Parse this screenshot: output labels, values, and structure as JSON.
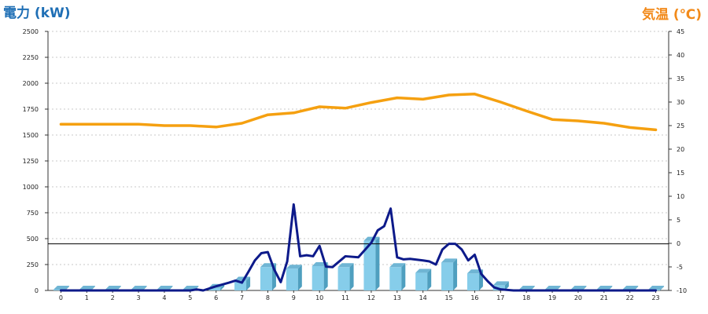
{
  "chart_data": {
    "type": "bar+line",
    "left_axis_title": "電力 (kW)",
    "right_axis_title": "気温 (℃)",
    "left_ylim": [
      0,
      2500
    ],
    "left_ticks": [
      0,
      250,
      500,
      750,
      1000,
      1250,
      1500,
      1750,
      2000,
      2250,
      2500
    ],
    "right_ylim": [
      -10,
      45
    ],
    "right_ticks": [
      -10,
      -5,
      0,
      5,
      10,
      15,
      20,
      25,
      30,
      35,
      40,
      45
    ],
    "categories": [
      "0",
      "1",
      "2",
      "3",
      "4",
      "5",
      "6",
      "7",
      "8",
      "9",
      "10",
      "11",
      "12",
      "13",
      "14",
      "15",
      "16",
      "17",
      "18",
      "19",
      "20",
      "21",
      "22",
      "23"
    ],
    "grid": true,
    "bars": {
      "axis": "left",
      "color": "#86cdea",
      "values": [
        8,
        8,
        8,
        8,
        8,
        8,
        25,
        95,
        225,
        210,
        235,
        225,
        480,
        225,
        170,
        270,
        165,
        50,
        8,
        8,
        8,
        8,
        8,
        8
      ]
    },
    "power_line": {
      "axis": "left",
      "color": "#0d1a8a",
      "x": [
        0,
        0.5,
        1,
        1.5,
        2,
        2.5,
        3,
        3.5,
        4,
        4.5,
        5,
        5.25,
        5.5,
        6,
        6.5,
        6.75,
        7,
        7.25,
        7.5,
        7.75,
        8,
        8.25,
        8.5,
        8.75,
        9,
        9.25,
        9.5,
        9.75,
        10,
        10.25,
        10.5,
        11,
        11.5,
        12,
        12.25,
        12.5,
        12.75,
        13,
        13.25,
        13.5,
        14,
        14.25,
        14.5,
        14.75,
        15,
        15.25,
        15.5,
        15.75,
        16,
        16.25,
        16.5,
        16.75,
        17,
        17.5,
        18,
        18.5,
        19,
        19.5,
        20,
        20.5,
        21,
        21.5,
        22,
        22.5,
        23
      ],
      "values": [
        0,
        0,
        0,
        0,
        0,
        0,
        0,
        0,
        0,
        0,
        0,
        10,
        0,
        40,
        75,
        95,
        75,
        180,
        290,
        360,
        370,
        200,
        80,
        280,
        830,
        330,
        340,
        330,
        430,
        230,
        225,
        330,
        320,
        460,
        580,
        620,
        790,
        320,
        300,
        305,
        290,
        280,
        250,
        395,
        450,
        450,
        395,
        290,
        345,
        160,
        90,
        30,
        10,
        0,
        0,
        0,
        0,
        0,
        0,
        0,
        0,
        0,
        0,
        0,
        0
      ]
    },
    "temperature_line": {
      "axis": "right",
      "color": "#f5a010",
      "x": [
        0,
        1,
        2,
        3,
        4,
        5,
        6,
        7,
        8,
        9,
        10,
        11,
        12,
        13,
        14,
        15,
        16,
        17,
        18,
        19,
        20,
        21,
        22,
        23
      ],
      "values": [
        25.3,
        25.3,
        25.3,
        25.3,
        25.0,
        25.0,
        24.7,
        25.5,
        27.3,
        27.7,
        29.0,
        28.7,
        29.9,
        30.9,
        30.6,
        31.5,
        31.7,
        30.0,
        28.1,
        26.3,
        26.0,
        25.5,
        24.6,
        24.1
      ]
    },
    "reference_line": {
      "axis": "left",
      "value": 450,
      "color": "#000000"
    }
  }
}
